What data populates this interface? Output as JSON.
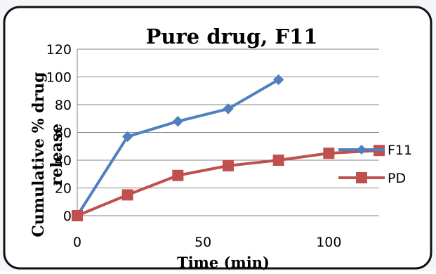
{
  "chart_data": {
    "type": "line",
    "title": "Pure drug, F11",
    "xlabel": "Time (min)",
    "ylabel": "Cumulative % drug release",
    "xlim": [
      0,
      120
    ],
    "ylim": [
      0,
      120
    ],
    "x_ticks": [
      "0",
      "50",
      "100"
    ],
    "y_ticks": [
      "0",
      "20",
      "40",
      "60",
      "80",
      "100",
      "120"
    ],
    "grid": "horizontal",
    "legend_position": "right",
    "series": [
      {
        "name": "F11",
        "color": "#4f81bd",
        "marker": "diamond",
        "x": [
          0,
          20,
          40,
          60,
          80
        ],
        "y": [
          0,
          57,
          68,
          77,
          98
        ]
      },
      {
        "name": "PD",
        "color": "#c0504d",
        "marker": "square",
        "x": [
          0,
          20,
          40,
          60,
          80,
          100,
          120
        ],
        "y": [
          0,
          15,
          29,
          36,
          40,
          45,
          47
        ]
      }
    ]
  }
}
